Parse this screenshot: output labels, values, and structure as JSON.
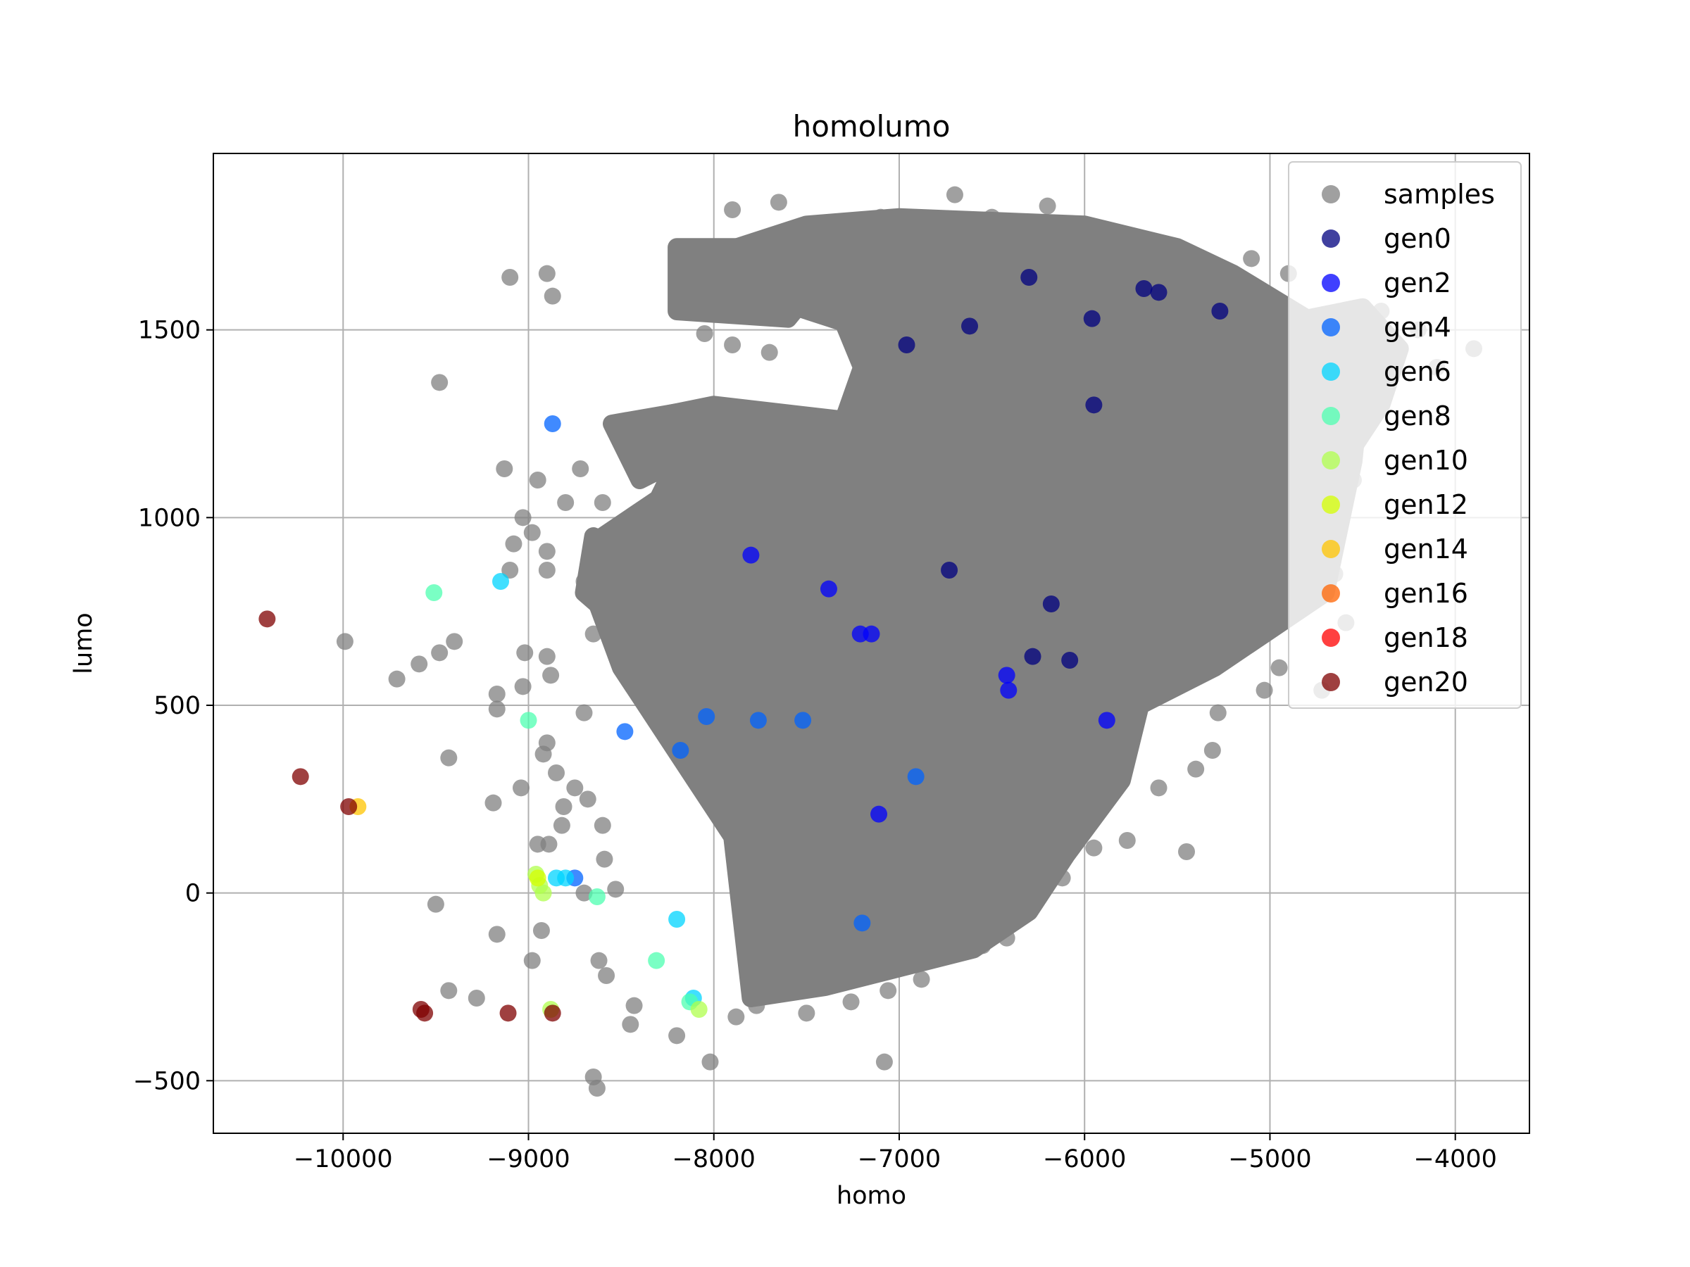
{
  "chart_data": {
    "type": "scatter",
    "title": "homolumo",
    "xlabel": "homo",
    "ylabel": "lumo",
    "xlim": [
      -10700,
      -3600
    ],
    "ylim": [
      -640,
      1970
    ],
    "xticks": [
      -10000,
      -9000,
      -8000,
      -7000,
      -6000,
      -5000,
      -4000
    ],
    "xtick_labels": [
      "−10000",
      "−9000",
      "−8000",
      "−7000",
      "−6000",
      "−5000",
      "−4000"
    ],
    "yticks": [
      -500,
      0,
      500,
      1000,
      1500
    ],
    "ytick_labels": [
      "−500",
      "0",
      "500",
      "1000",
      "1500"
    ],
    "grid": true,
    "legend_position": "top-right",
    "samples_regions": [
      [
        [
          -7800,
          -280
        ],
        [
          -7900,
          150
        ],
        [
          -8100,
          300
        ],
        [
          -8300,
          450
        ],
        [
          -8500,
          600
        ],
        [
          -8650,
          800
        ],
        [
          -8600,
          950
        ],
        [
          -8300,
          1050
        ],
        [
          -8200,
          1150
        ],
        [
          -8500,
          1250
        ],
        [
          -8000,
          1300
        ],
        [
          -7300,
          1260
        ],
        [
          -7200,
          1400
        ],
        [
          -7300,
          1520
        ],
        [
          -7800,
          1600
        ],
        [
          -8000,
          1700
        ],
        [
          -7500,
          1780
        ],
        [
          -7000,
          1800
        ],
        [
          -6000,
          1780
        ],
        [
          -5500,
          1720
        ],
        [
          -5200,
          1650
        ],
        [
          -4700,
          1500
        ],
        [
          -4500,
          1400
        ],
        [
          -4550,
          1150
        ],
        [
          -4700,
          800
        ],
        [
          -5000,
          700
        ],
        [
          -5300,
          600
        ],
        [
          -5700,
          500
        ],
        [
          -5800,
          300
        ],
        [
          -6100,
          100
        ],
        [
          -6300,
          -50
        ],
        [
          -6600,
          -150
        ],
        [
          -7000,
          -200
        ],
        [
          -7400,
          -250
        ]
      ],
      [
        [
          -8350,
          650
        ],
        [
          -8700,
          800
        ],
        [
          -8650,
          950
        ],
        [
          -8400,
          900
        ]
      ],
      [
        [
          -8400,
          1100
        ],
        [
          -8550,
          1250
        ],
        [
          -8200,
          1280
        ],
        [
          -8200,
          1150
        ]
      ],
      [
        [
          -8200,
          1720
        ],
        [
          -8200,
          1550
        ],
        [
          -7600,
          1530
        ],
        [
          -7400,
          1650
        ],
        [
          -7700,
          1720
        ]
      ],
      [
        [
          -5100,
          1500
        ],
        [
          -4500,
          1560
        ],
        [
          -4300,
          1450
        ],
        [
          -4400,
          1300
        ],
        [
          -4600,
          1150
        ],
        [
          -4800,
          1000
        ],
        [
          -5000,
          1250
        ]
      ]
    ],
    "series": [
      {
        "name": "samples",
        "color": "#808080",
        "alpha": 0.75,
        "points": [
          [
            -8900,
            1650
          ],
          [
            -9100,
            1640
          ],
          [
            -8870,
            1590
          ],
          [
            -9480,
            1360
          ],
          [
            -7700,
            1440
          ],
          [
            -7900,
            1460
          ],
          [
            -8050,
            1490
          ],
          [
            -9130,
            1130
          ],
          [
            -8720,
            1130
          ],
          [
            -8950,
            1100
          ],
          [
            -8800,
            1040
          ],
          [
            -8600,
            1040
          ],
          [
            -9030,
            1000
          ],
          [
            -8980,
            960
          ],
          [
            -8900,
            910
          ],
          [
            -9080,
            930
          ],
          [
            -9100,
            860
          ],
          [
            -8900,
            860
          ],
          [
            -8700,
            830
          ],
          [
            -9990,
            670
          ],
          [
            -9480,
            640
          ],
          [
            -9400,
            670
          ],
          [
            -9590,
            610
          ],
          [
            -9710,
            570
          ],
          [
            -9020,
            640
          ],
          [
            -9030,
            550
          ],
          [
            -9170,
            530
          ],
          [
            -9170,
            490
          ],
          [
            -8900,
            630
          ],
          [
            -8880,
            580
          ],
          [
            -8650,
            690
          ],
          [
            -8700,
            480
          ],
          [
            -8900,
            400
          ],
          [
            -8920,
            370
          ],
          [
            -8850,
            320
          ],
          [
            -8750,
            280
          ],
          [
            -9430,
            360
          ],
          [
            -9040,
            280
          ],
          [
            -9190,
            240
          ],
          [
            -8810,
            230
          ],
          [
            -8680,
            250
          ],
          [
            -8950,
            130
          ],
          [
            -8890,
            130
          ],
          [
            -8820,
            180
          ],
          [
            -8600,
            180
          ],
          [
            -8590,
            90
          ],
          [
            -8700,
            0
          ],
          [
            -8530,
            10
          ],
          [
            -9500,
            -30
          ],
          [
            -9170,
            -110
          ],
          [
            -8930,
            -100
          ],
          [
            -8980,
            -180
          ],
          [
            -8620,
            -180
          ],
          [
            -8580,
            -220
          ],
          [
            -9430,
            -260
          ],
          [
            -9280,
            -280
          ],
          [
            -8430,
            -300
          ],
          [
            -8450,
            -350
          ],
          [
            -8200,
            -380
          ],
          [
            -8020,
            -450
          ],
          [
            -8650,
            -490
          ],
          [
            -8630,
            -520
          ],
          [
            -7880,
            -330
          ],
          [
            -7770,
            -300
          ],
          [
            -7500,
            -320
          ],
          [
            -7260,
            -290
          ],
          [
            -7060,
            -260
          ],
          [
            -6880,
            -230
          ],
          [
            -7080,
            -450
          ],
          [
            -6550,
            -140
          ],
          [
            -6420,
            -120
          ],
          [
            -6120,
            40
          ],
          [
            -5950,
            120
          ],
          [
            -5770,
            140
          ],
          [
            -5450,
            110
          ],
          [
            -5600,
            280
          ],
          [
            -5400,
            330
          ],
          [
            -5310,
            380
          ],
          [
            -5280,
            480
          ],
          [
            -5030,
            540
          ],
          [
            -4950,
            600
          ],
          [
            -4720,
            540
          ],
          [
            -4590,
            720
          ],
          [
            -4650,
            850
          ],
          [
            -4700,
            1000
          ],
          [
            -4550,
            1100
          ],
          [
            -3900,
            1450
          ],
          [
            -4100,
            1400
          ],
          [
            -4200,
            1500
          ],
          [
            -4400,
            1550
          ],
          [
            -4900,
            1650
          ],
          [
            -5100,
            1690
          ],
          [
            -6200,
            1830
          ],
          [
            -6500,
            1800
          ],
          [
            -6700,
            1860
          ],
          [
            -7650,
            1840
          ],
          [
            -7900,
            1820
          ],
          [
            -7500,
            1780
          ],
          [
            -7100,
            1800
          ],
          [
            -6900,
            1750
          ],
          [
            -6800,
            1700
          ],
          [
            -6400,
            1700
          ],
          [
            -5800,
            1740
          ]
        ]
      },
      {
        "name": "gen0",
        "color": "#00007f",
        "points": [
          [
            -6300,
            1640
          ],
          [
            -5680,
            1610
          ],
          [
            -5600,
            1600
          ],
          [
            -5270,
            1550
          ],
          [
            -6620,
            1510
          ],
          [
            -5960,
            1530
          ],
          [
            -6960,
            1460
          ],
          [
            -5950,
            1300
          ],
          [
            -6730,
            860
          ],
          [
            -6180,
            770
          ],
          [
            -6280,
            630
          ],
          [
            -6080,
            620
          ]
        ]
      },
      {
        "name": "gen2",
        "color": "#0000ff",
        "points": [
          [
            -7800,
            900
          ],
          [
            -7380,
            810
          ],
          [
            -7150,
            690
          ],
          [
            -7210,
            690
          ],
          [
            -6420,
            580
          ],
          [
            -6410,
            540
          ],
          [
            -5880,
            460
          ],
          [
            -7110,
            210
          ]
        ]
      },
      {
        "name": "gen4",
        "color": "#0063ff",
        "points": [
          [
            -8870,
            1250
          ],
          [
            -8480,
            430
          ],
          [
            -8180,
            380
          ],
          [
            -8040,
            470
          ],
          [
            -7760,
            460
          ],
          [
            -7520,
            460
          ],
          [
            -6910,
            310
          ],
          [
            -7200,
            -80
          ],
          [
            -8750,
            40
          ]
        ]
      },
      {
        "name": "gen6",
        "color": "#00d4ff",
        "points": [
          [
            -9150,
            830
          ],
          [
            -8850,
            40
          ],
          [
            -8800,
            40
          ],
          [
            -8200,
            -70
          ],
          [
            -8110,
            -280
          ]
        ]
      },
      {
        "name": "gen8",
        "color": "#4effb0",
        "points": [
          [
            -9510,
            800
          ],
          [
            -9000,
            460
          ],
          [
            -8630,
            -10
          ],
          [
            -8310,
            -180
          ],
          [
            -8130,
            -290
          ]
        ]
      },
      {
        "name": "gen10",
        "color": "#b0ff4e",
        "points": [
          [
            -8960,
            50
          ],
          [
            -8940,
            20
          ],
          [
            -8920,
            0
          ],
          [
            -8080,
            -310
          ],
          [
            -8880,
            -310
          ]
        ]
      },
      {
        "name": "gen12",
        "color": "#d4ff00",
        "points": [
          [
            -8950,
            40
          ]
        ]
      },
      {
        "name": "gen14",
        "color": "#ffc400",
        "points": [
          [
            -9920,
            230
          ]
        ]
      },
      {
        "name": "gen16",
        "color": "#ff6300",
        "points": []
      },
      {
        "name": "gen18",
        "color": "#ff0000",
        "points": []
      },
      {
        "name": "gen20",
        "color": "#7f0000",
        "points": [
          [
            -10410,
            730
          ],
          [
            -10230,
            310
          ],
          [
            -9970,
            230
          ],
          [
            -9580,
            -310
          ],
          [
            -9560,
            -320
          ],
          [
            -9110,
            -320
          ],
          [
            -8870,
            -320
          ]
        ]
      }
    ]
  }
}
